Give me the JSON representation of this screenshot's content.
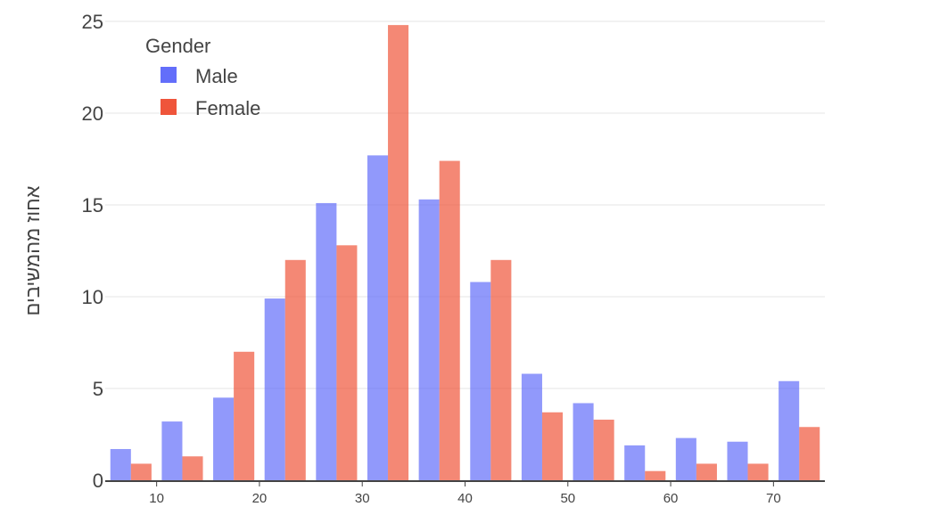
{
  "chart_data": {
    "type": "bar",
    "ylabel": "אחוז מהמשיבים",
    "xlabel": "",
    "legend": {
      "title": "Gender",
      "placement": "top-left"
    },
    "x": [
      7.5,
      12.5,
      17.5,
      22.5,
      27.5,
      32.5,
      37.5,
      42.5,
      47.5,
      52.5,
      57.5,
      62.5,
      67.5,
      72.5
    ],
    "bin_width": 5,
    "series": [
      {
        "name": "Male",
        "color": "#636efa",
        "values": [
          1.7,
          3.2,
          4.5,
          9.9,
          15.1,
          17.7,
          15.3,
          10.8,
          5.8,
          4.2,
          1.9,
          2.3,
          2.1,
          5.4
        ]
      },
      {
        "name": "Female",
        "color": "#ef553b",
        "values": [
          0.9,
          1.3,
          7.0,
          12.0,
          12.8,
          24.8,
          17.4,
          12.0,
          3.7,
          3.3,
          0.5,
          0.9,
          0.9,
          2.9
        ]
      }
    ],
    "xlim": [
      5,
      75
    ],
    "ylim": [
      0,
      25
    ],
    "xticks": [
      10,
      20,
      30,
      40,
      50,
      60,
      70
    ],
    "yticks": [
      0,
      5,
      10,
      15,
      20,
      25
    ],
    "grid": true,
    "bar_opacity": 0.7
  }
}
